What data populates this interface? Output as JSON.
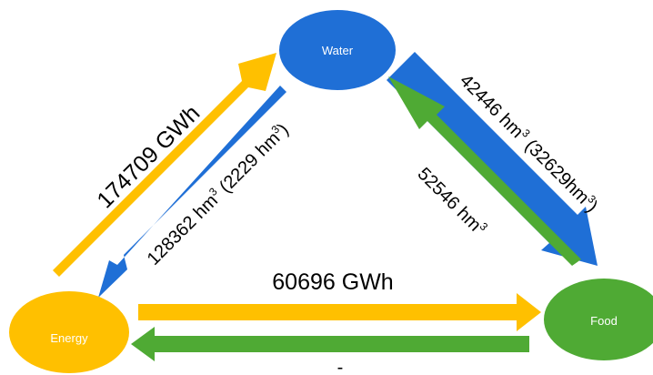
{
  "colors": {
    "water": "#1f6fd6",
    "energy": "#ffc000",
    "food": "#4faa34",
    "energy_arrow": "#ffc000",
    "water_arrow": "#1f6fd6",
    "food_arrow": "#4faa34",
    "text": "#000000",
    "node_text": "#ffffff"
  },
  "nodes": {
    "water": {
      "label": "Water"
    },
    "energy": {
      "label": "Energy"
    },
    "food": {
      "label": "Food"
    }
  },
  "flows": {
    "energy_to_water": {
      "label": "174709 GWh"
    },
    "water_to_energy": {
      "main": "128362 hm",
      "sup1": "3",
      "paren": " (2229 hm",
      "sup2": "3",
      "close": ")"
    },
    "water_to_food": {
      "main": "42446 hm",
      "sup1": "3",
      "paren": " (32629hm",
      "sup2": "3",
      "close": ")"
    },
    "food_to_water": {
      "main": "52546 hm",
      "sup1": "3"
    },
    "energy_to_food": {
      "label": "60696 GWh"
    },
    "food_to_energy": {
      "label": "-"
    }
  }
}
